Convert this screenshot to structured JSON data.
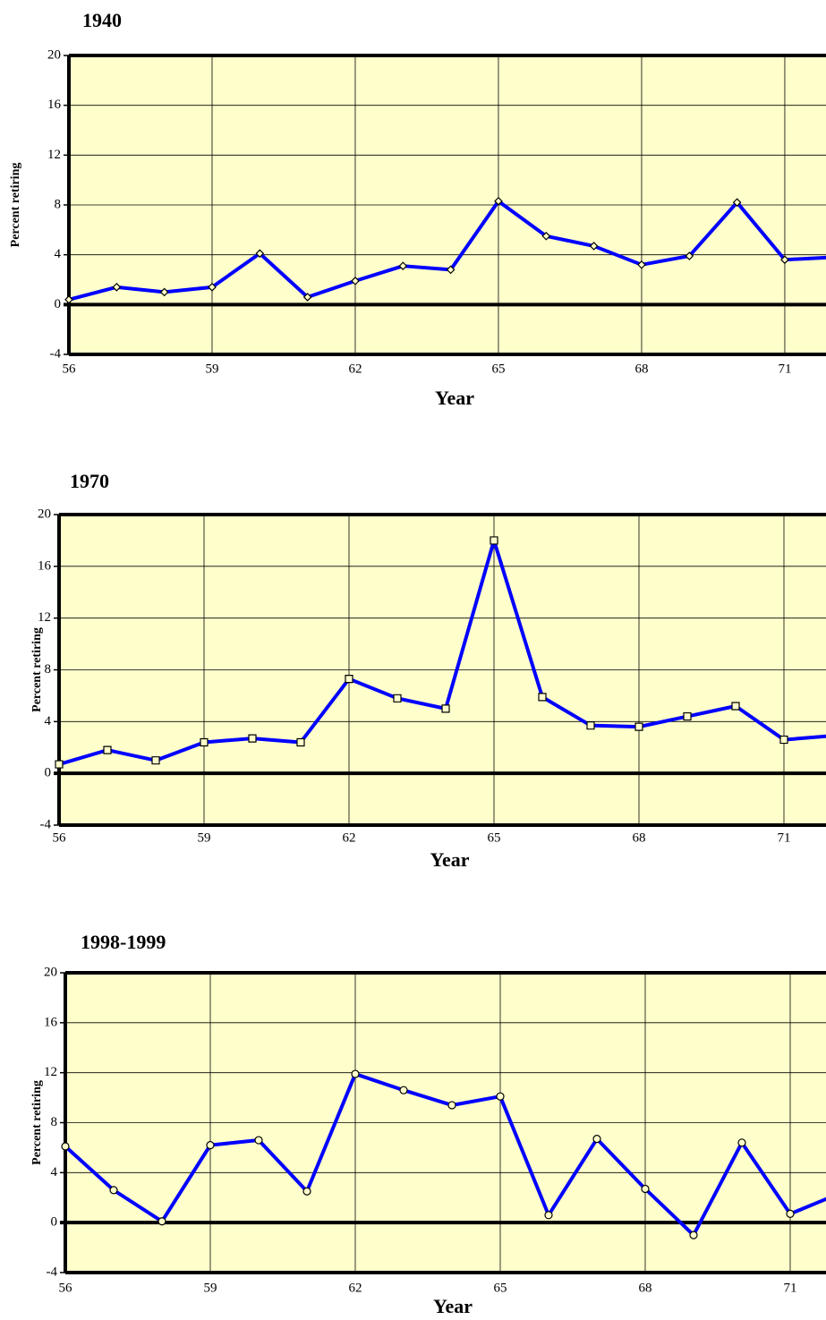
{
  "chart_data": [
    {
      "type": "line",
      "title": "1940",
      "y_label": "Percent retiring",
      "x_label": "Year",
      "x": [
        56,
        57,
        58,
        59,
        60,
        61,
        62,
        63,
        64,
        65,
        66,
        67,
        68,
        69,
        70,
        71,
        72
      ],
      "series": [
        {
          "name": "1940",
          "color": "#0000ff",
          "marker": "diamond",
          "values": [
            0.4,
            1.4,
            1.0,
            1.4,
            4.1,
            0.6,
            1.9,
            3.1,
            2.8,
            8.3,
            5.5,
            4.7,
            3.2,
            3.9,
            8.2,
            3.6,
            3.8
          ]
        }
      ],
      "xlim": [
        56,
        72
      ],
      "xticks": [
        56,
        59,
        62,
        65,
        68,
        71
      ],
      "ylim": [
        -4,
        20
      ],
      "yticks": [
        -4,
        0,
        4,
        8,
        12,
        16,
        20
      ],
      "grid": true,
      "background": "#ffffcc"
    },
    {
      "type": "line",
      "title": "1970",
      "y_label": "Percent retiring",
      "x_label": "Year",
      "x": [
        56,
        57,
        58,
        59,
        60,
        61,
        62,
        63,
        64,
        65,
        66,
        67,
        68,
        69,
        70,
        71,
        72
      ],
      "series": [
        {
          "name": "1970",
          "color": "#0000ff",
          "marker": "square",
          "values": [
            0.7,
            1.8,
            1.0,
            2.4,
            2.7,
            2.4,
            7.3,
            5.8,
            5.0,
            18.0,
            5.9,
            3.7,
            3.6,
            4.4,
            5.2,
            2.6,
            2.9
          ]
        }
      ],
      "xlim": [
        56,
        72
      ],
      "xticks": [
        56,
        59,
        62,
        65,
        68,
        71
      ],
      "ylim": [
        -4,
        20
      ],
      "yticks": [
        -4,
        0,
        4,
        8,
        12,
        16,
        20
      ],
      "grid": true,
      "background": "#ffffcc"
    },
    {
      "type": "line",
      "title": "1998-1999",
      "y_label": "Percent retiring",
      "x_label": "Year",
      "x": [
        56,
        57,
        58,
        59,
        60,
        61,
        62,
        63,
        64,
        65,
        66,
        67,
        68,
        69,
        70,
        71,
        72
      ],
      "series": [
        {
          "name": "1998-1999",
          "color": "#0000ff",
          "marker": "circle",
          "values": [
            6.1,
            2.6,
            0.1,
            6.2,
            6.6,
            2.5,
            11.9,
            10.6,
            9.4,
            10.1,
            0.6,
            6.7,
            2.7,
            -1.0,
            6.4,
            0.7,
            2.3
          ]
        }
      ],
      "xlim": [
        56,
        72
      ],
      "xticks": [
        56,
        59,
        62,
        65,
        68,
        71
      ],
      "ylim": [
        -4,
        20
      ],
      "yticks": [
        -4,
        0,
        4,
        8,
        12,
        16,
        20
      ],
      "grid": true,
      "background": "#ffffcc"
    }
  ]
}
